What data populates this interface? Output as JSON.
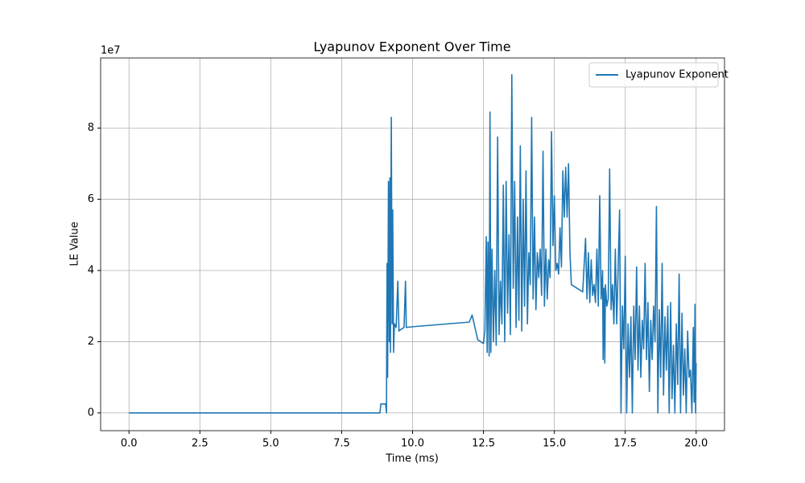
{
  "chart_data": {
    "type": "line",
    "title": "Lyapunov Exponent Over Time",
    "x_label": "Time (ms)",
    "y_label": "LE Value",
    "y_offset_label": "1e7",
    "x": [
      0,
      8.85,
      8.88,
      9.05,
      9.08,
      9.1,
      9.12,
      9.15,
      9.18,
      9.2,
      9.22,
      9.25,
      9.28,
      9.3,
      9.33,
      9.36,
      9.42,
      9.48,
      9.52,
      9.6,
      9.7,
      9.75,
      9.78,
      10.0,
      12.0,
      12.1,
      12.2,
      12.3,
      12.5,
      12.55,
      12.6,
      12.63,
      12.66,
      12.7,
      12.73,
      12.76,
      12.8,
      12.85,
      12.9,
      12.95,
      13.0,
      13.05,
      13.1,
      13.15,
      13.2,
      13.25,
      13.3,
      13.35,
      13.4,
      13.45,
      13.5,
      13.55,
      13.6,
      13.65,
      13.7,
      13.75,
      13.8,
      13.85,
      13.9,
      13.95,
      14.0,
      14.05,
      14.1,
      14.15,
      14.2,
      14.25,
      14.3,
      14.35,
      14.4,
      14.45,
      14.5,
      14.55,
      14.6,
      14.65,
      14.7,
      14.75,
      14.8,
      14.85,
      14.9,
      14.95,
      15.0,
      15.05,
      15.1,
      15.15,
      15.2,
      15.25,
      15.3,
      15.35,
      15.4,
      15.45,
      15.5,
      15.55,
      15.6,
      15.8,
      16.0,
      16.1,
      16.15,
      16.2,
      16.25,
      16.3,
      16.35,
      16.4,
      16.45,
      16.5,
      16.55,
      16.6,
      16.65,
      16.7,
      16.72,
      16.75,
      16.78,
      16.8,
      16.85,
      16.9,
      16.95,
      17.0,
      17.05,
      17.1,
      17.15,
      17.2,
      17.3,
      17.35,
      17.4,
      17.45,
      17.5,
      17.55,
      17.6,
      17.65,
      17.7,
      17.75,
      17.8,
      17.85,
      17.9,
      17.95,
      18.0,
      18.05,
      18.1,
      18.15,
      18.2,
      18.25,
      18.3,
      18.35,
      18.4,
      18.45,
      18.5,
      18.55,
      18.6,
      18.65,
      18.7,
      18.75,
      18.8,
      18.85,
      18.9,
      18.95,
      19.0,
      19.05,
      19.1,
      19.15,
      19.2,
      19.25,
      19.3,
      19.35,
      19.4,
      19.45,
      19.5,
      19.55,
      19.6,
      19.65,
      19.7,
      19.75,
      19.8,
      19.85,
      19.9,
      19.93,
      19.96,
      19.98,
      20.0
    ],
    "series": [
      {
        "name": "Lyapunov Exponent",
        "color": "#1f77b4",
        "values": [
          0,
          0,
          0.25,
          0.25,
          0,
          4.2,
          1.0,
          6.5,
          2.0,
          6.6,
          1.7,
          8.3,
          2.5,
          5.7,
          1.7,
          2.5,
          2.4,
          3.7,
          2.3,
          2.35,
          2.4,
          3.7,
          2.4,
          2.42,
          2.55,
          2.75,
          2.4,
          2.05,
          1.95,
          2.3,
          4.95,
          1.7,
          4.8,
          1.6,
          8.45,
          1.7,
          4.6,
          2.0,
          4.0,
          1.9,
          7.75,
          2.2,
          3.7,
          2.5,
          6.4,
          2.0,
          6.5,
          2.8,
          5.0,
          2.2,
          9.5,
          3.5,
          6.5,
          2.4,
          5.5,
          2.6,
          7.5,
          2.3,
          6.0,
          3.0,
          6.8,
          2.5,
          4.5,
          3.6,
          8.3,
          3.2,
          5.5,
          2.9,
          4.5,
          3.8,
          4.6,
          3.3,
          7.35,
          3.0,
          4.6,
          3.2,
          4.3,
          3.8,
          7.9,
          4.7,
          6.1,
          4.0,
          4.2,
          3.9,
          5.2,
          4.1,
          6.8,
          5.5,
          6.9,
          5.5,
          7.0,
          4.5,
          3.6,
          3.5,
          3.4,
          4.9,
          3.2,
          4.5,
          3.1,
          4.3,
          3.3,
          3.6,
          3.1,
          4.6,
          3.0,
          6.1,
          3.2,
          4.0,
          1.5,
          3.5,
          1.4,
          3.6,
          3.0,
          3.2,
          6.85,
          2.9,
          3.6,
          2.5,
          4.6,
          2.5,
          5.7,
          0.0,
          3.0,
          1.8,
          4.4,
          0.0,
          2.5,
          1.0,
          2.7,
          0.0,
          3.0,
          1.5,
          4.1,
          1.2,
          3.0,
          1.0,
          2.6,
          1.8,
          4.2,
          1.5,
          3.1,
          0.6,
          2.6,
          1.5,
          3.0,
          2.0,
          5.8,
          0.0,
          2.9,
          1.0,
          4.2,
          0.5,
          2.7,
          1.2,
          3.0,
          0.0,
          3.1,
          0.4,
          1.9,
          0.0,
          2.5,
          0.8,
          3.9,
          0.0,
          2.8,
          0.5,
          1.8,
          0.0,
          2.3,
          1.0,
          1.2,
          0.0,
          2.4,
          0.3,
          3.05,
          0.0,
          1.4
        ]
      }
    ],
    "xlim": [
      -1.0,
      21.0
    ],
    "xticks": [
      {
        "value": 0,
        "label": "0.0"
      },
      2.5,
      {
        "value": 5,
        "label": "5.0"
      },
      7.5,
      {
        "value": 10,
        "label": "10.0"
      },
      12.5,
      {
        "value": 15,
        "label": "15.0"
      },
      17.5,
      {
        "value": 20,
        "label": "20.0"
      }
    ],
    "ylim": [
      -0.5,
      9.97
    ],
    "yticks": [
      0,
      2,
      4,
      6,
      8
    ],
    "grid": true,
    "legend": "upper-right"
  }
}
